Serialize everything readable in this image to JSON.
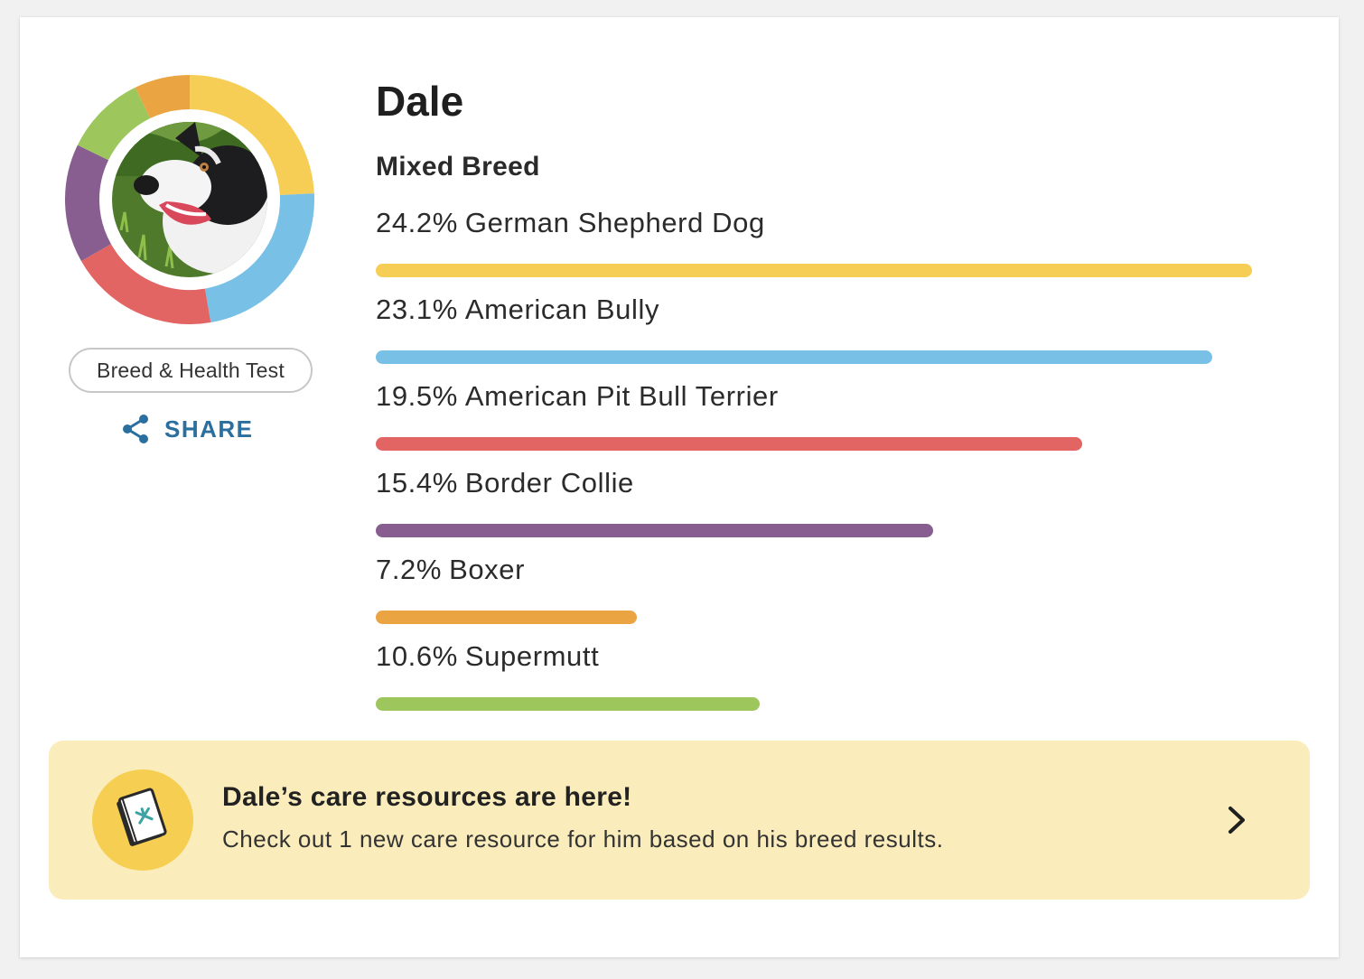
{
  "dog": {
    "name": "Dale",
    "breed_type": "Mixed Breed"
  },
  "test": {
    "label": "Breed & Health Test"
  },
  "share": {
    "label": "SHARE",
    "icon": "share-icon"
  },
  "breeds": [
    {
      "pct": "24.2%",
      "name": "German Shepherd Dog",
      "value": 24.2,
      "color": "#f6cd55"
    },
    {
      "pct": "23.1%",
      "name": "American Bully",
      "value": 23.1,
      "color": "#79c0e6"
    },
    {
      "pct": "19.5%",
      "name": "American Pit Bull Terrier",
      "value": 19.5,
      "color": "#e26463"
    },
    {
      "pct": "15.4%",
      "name": "Border Collie",
      "value": 15.4,
      "color": "#875e8f"
    },
    {
      "pct": "7.2%",
      "name": "Boxer",
      "value": 7.2,
      "color": "#eaa442"
    },
    {
      "pct": "10.6%",
      "name": "Supermutt",
      "value": 10.6,
      "color": "#9dc75c"
    }
  ],
  "banner": {
    "title": "Dale’s care resources are here!",
    "text": "Check out 1 new care resource for him based on his breed results.",
    "icon": "book-icon",
    "chevron": "chevron-right-icon",
    "icon_bg": "#f6ce52",
    "bg": "#fbedbb"
  }
}
